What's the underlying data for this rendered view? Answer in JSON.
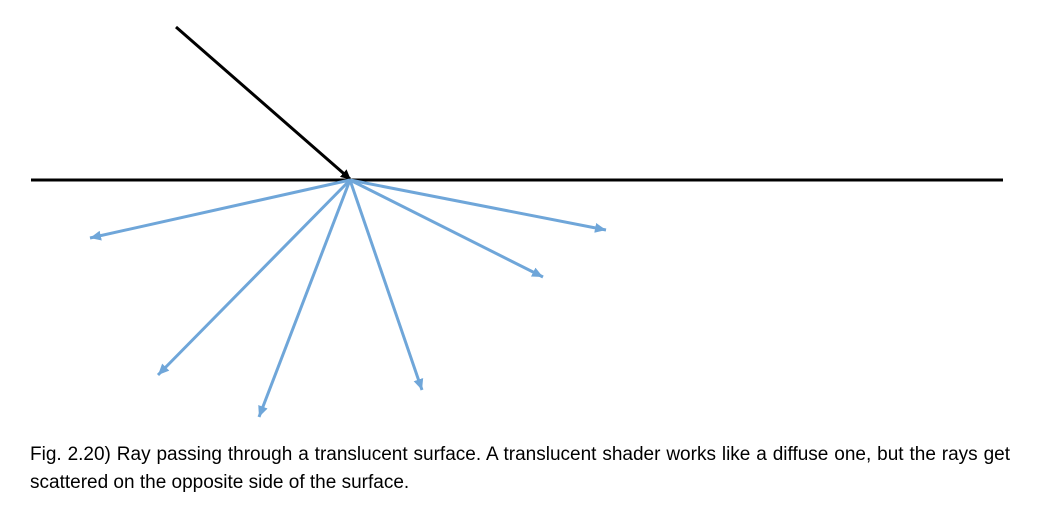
{
  "figure": {
    "caption": "Fig. 2.20) Ray passing through a translucent surface. A translucent shader works like a diffuse one, but the rays get scattered on the opposite side of the surface.",
    "colors": {
      "surface": "#000000",
      "incident_ray": "#000000",
      "scattered_rays": "#6fa6d9"
    },
    "scattered_ray_count": 6
  }
}
